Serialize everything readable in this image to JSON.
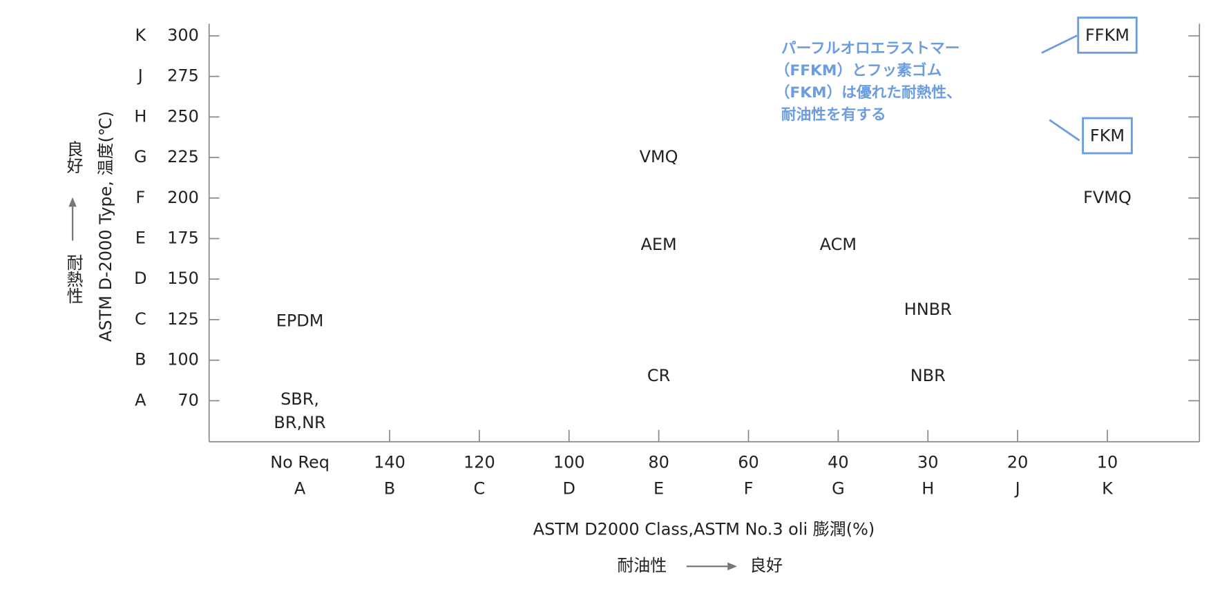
{
  "chart_data": {
    "type": "label-scatter",
    "x_title": "ASTM D2000 Class,ASTM No.3 oli 膨潤(%)",
    "x_note_left": "耐油性",
    "x_note_right": "良好",
    "y_title": "ASTM D-2000 Type, 温度(℃)",
    "y_note_top": "良好",
    "y_note_bottom": "耐熱性",
    "annotation": [
      "パーフルオロエラストマー",
      "（FFKM）とフッ素ゴム",
      "（FKM）は優れた耐熱性、",
      "耐油性を有する"
    ],
    "xticks": [
      {
        "label": "No Req",
        "class": "A"
      },
      {
        "label": "140",
        "class": "B"
      },
      {
        "label": "120",
        "class": "C"
      },
      {
        "label": "100",
        "class": "D"
      },
      {
        "label": "80",
        "class": "E"
      },
      {
        "label": "60",
        "class": "F"
      },
      {
        "label": "40",
        "class": "G"
      },
      {
        "label": "30",
        "class": "H"
      },
      {
        "label": "20",
        "class": "J"
      },
      {
        "label": "10",
        "class": "K"
      }
    ],
    "yticks": [
      {
        "value": 70,
        "grade": "A"
      },
      {
        "value": 100,
        "grade": "B"
      },
      {
        "value": 125,
        "grade": "C"
      },
      {
        "value": 150,
        "grade": "D"
      },
      {
        "value": 175,
        "grade": "E"
      },
      {
        "value": 200,
        "grade": "F"
      },
      {
        "value": 225,
        "grade": "G"
      },
      {
        "value": 250,
        "grade": "H"
      },
      {
        "value": 275,
        "grade": "J"
      },
      {
        "value": 300,
        "grade": "K"
      }
    ],
    "points": [
      {
        "label": "FFKM",
        "x": "K",
        "y": 300,
        "highlight": true
      },
      {
        "label": "FKM",
        "x": "K",
        "y": 238,
        "highlight": true
      },
      {
        "label": "FVMQ",
        "x": "K",
        "y": 200
      },
      {
        "label": "VMQ",
        "x": "E",
        "y": 225
      },
      {
        "label": "AEM",
        "x": "E",
        "y": 171
      },
      {
        "label": "ACM",
        "x": "G",
        "y": 171
      },
      {
        "label": "HNBR",
        "x": "H",
        "y": 131
      },
      {
        "label": "EPDM",
        "x": "A",
        "y": 124
      },
      {
        "label": "CR",
        "x": "E",
        "y": 88
      },
      {
        "label": "NBR",
        "x": "H",
        "y": 88
      },
      {
        "label": [
          "SBR,",
          "BR,NR"
        ],
        "x": "A",
        "y": 62
      }
    ]
  }
}
